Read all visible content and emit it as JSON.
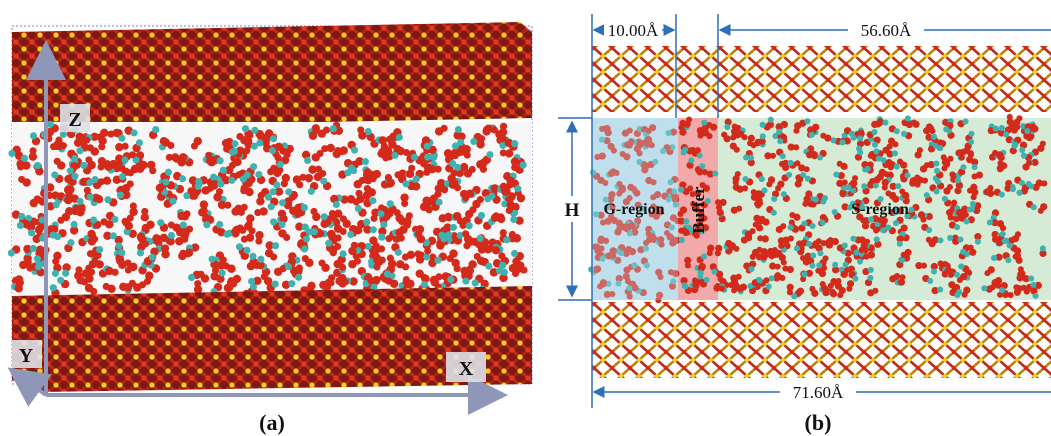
{
  "panel_a": {
    "caption": "(a)",
    "axis_labels": {
      "z": "Z",
      "y": "Y",
      "x": "X"
    }
  },
  "panel_b": {
    "caption": "(b)",
    "dimensions": {
      "left_width": "10.00Å",
      "right_width": "56.60Å",
      "total_width": "71.60Å",
      "height": "H"
    },
    "regions": {
      "gas": "G-region",
      "buffer": "Buffer",
      "slit": "S-region"
    }
  },
  "colors": {
    "oxygen": "#d42a1c",
    "silicon": "#f0d21e",
    "hydrogen": "#3fb2b0",
    "dimension_line": "#2f6fb8",
    "g_region_fill": "#b9dcec",
    "buffer_fill": "#ef9a9a",
    "s_region_fill": "#cfe8cf"
  }
}
